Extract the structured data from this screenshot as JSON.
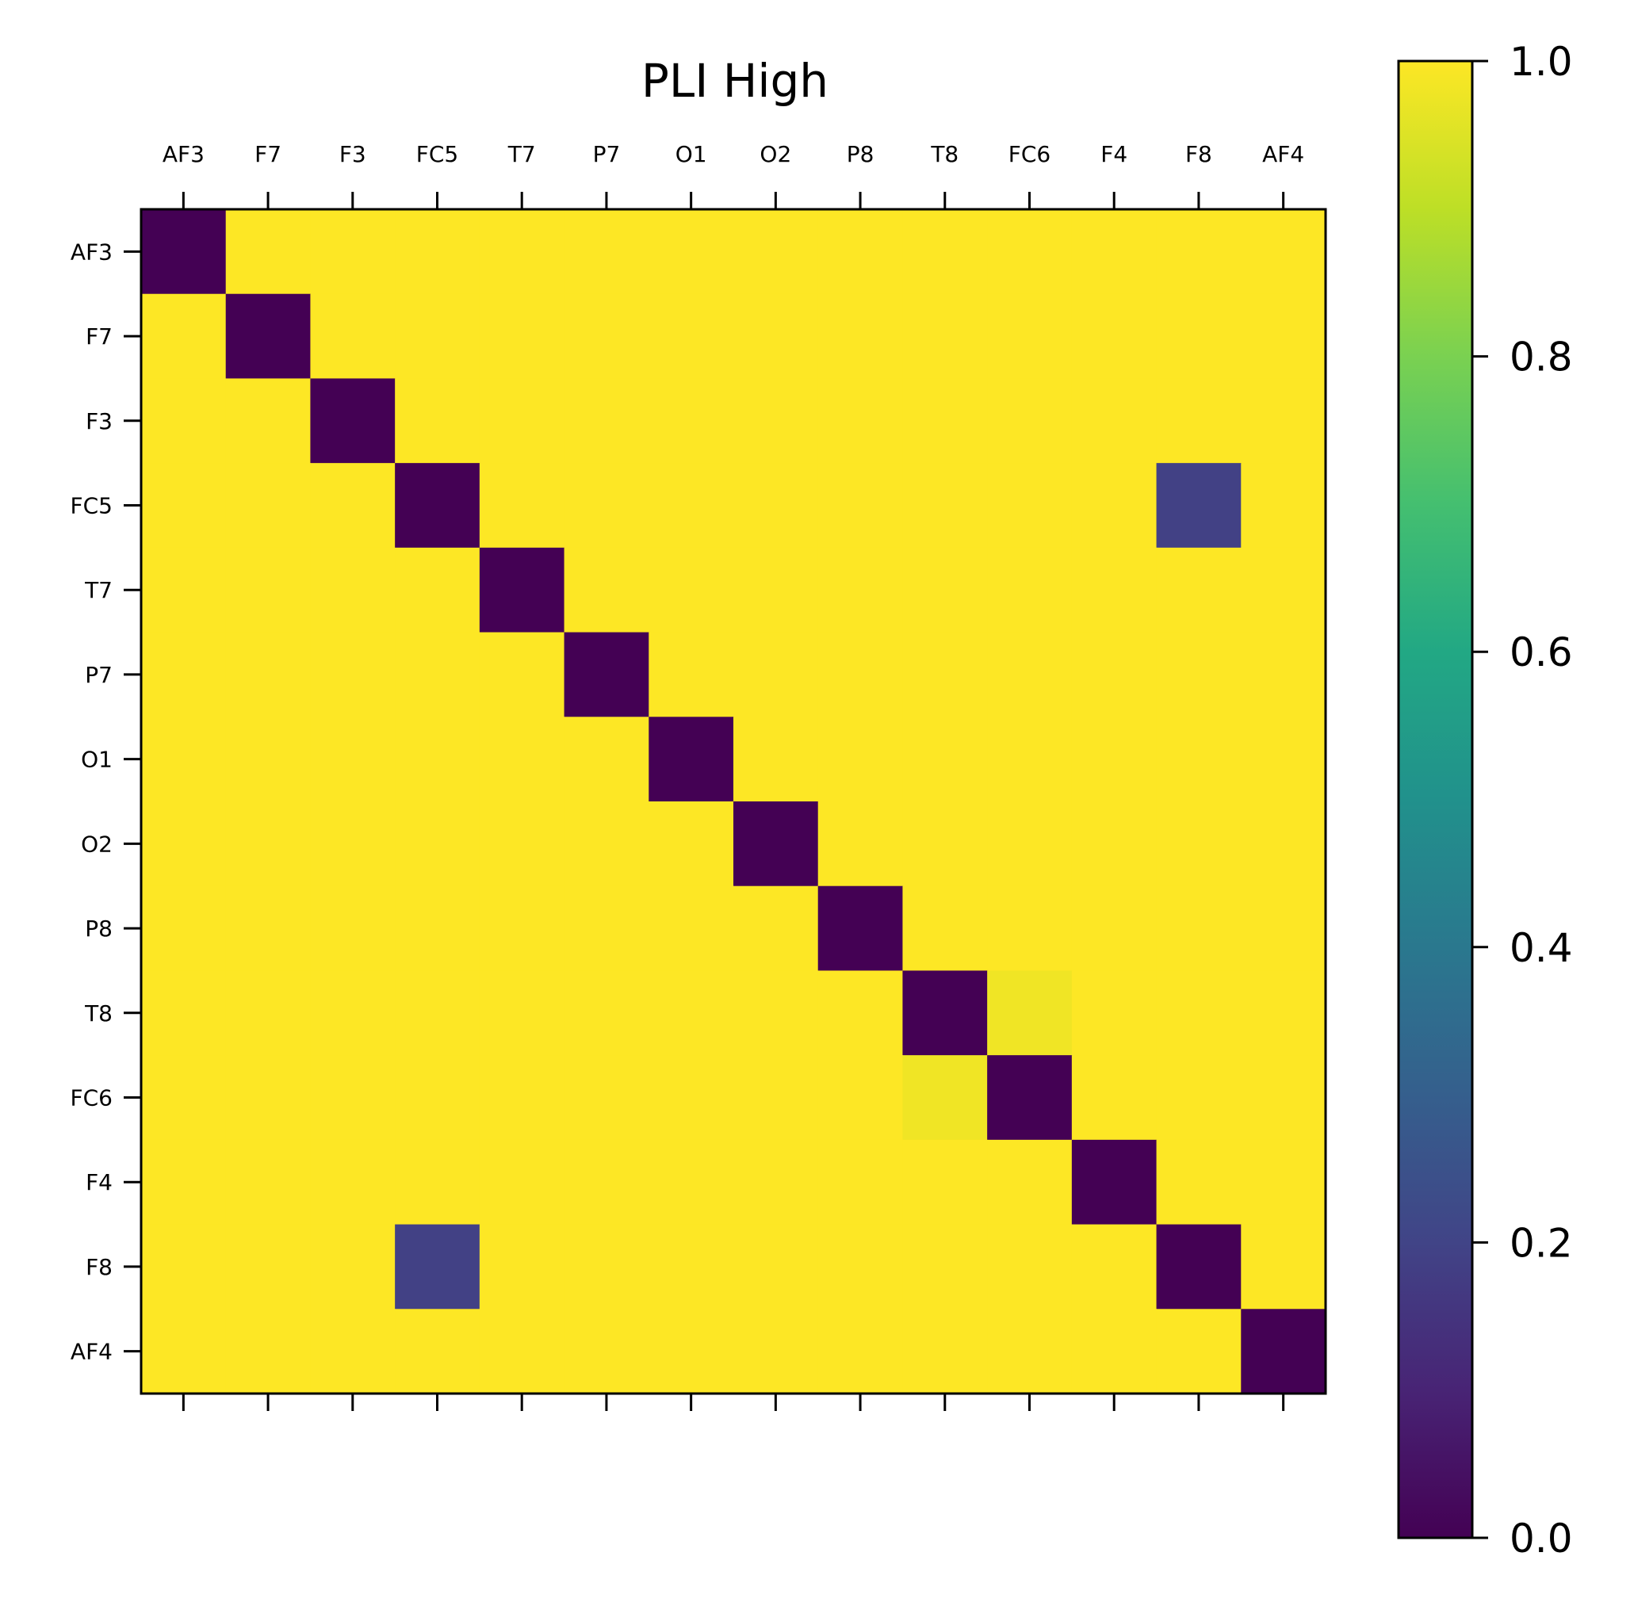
{
  "chart_data": {
    "type": "heatmap",
    "title": "PLI High",
    "x_tick_position": "top",
    "x_labels": [
      "AF3",
      "F7",
      "F3",
      "FC5",
      "T7",
      "P7",
      "O1",
      "O2",
      "P8",
      "T8",
      "FC6",
      "F4",
      "F8",
      "AF4"
    ],
    "y_labels": [
      "AF3",
      "F7",
      "F3",
      "FC5",
      "T7",
      "P7",
      "O1",
      "O2",
      "P8",
      "T8",
      "FC6",
      "F4",
      "F8",
      "AF4"
    ],
    "values": [
      [
        0,
        1,
        1,
        1,
        1,
        1,
        1,
        1,
        1,
        1,
        1,
        1,
        1,
        1
      ],
      [
        1,
        0,
        1,
        1,
        1,
        1,
        1,
        1,
        1,
        1,
        1,
        1,
        1,
        1
      ],
      [
        1,
        1,
        0,
        1,
        1,
        1,
        1,
        1,
        1,
        1,
        1,
        1,
        1,
        1
      ],
      [
        1,
        1,
        1,
        0,
        1,
        1,
        1,
        1,
        1,
        1,
        1,
        1,
        0.19,
        1
      ],
      [
        1,
        1,
        1,
        1,
        0,
        1,
        1,
        1,
        1,
        1,
        1,
        1,
        1,
        1
      ],
      [
        1,
        1,
        1,
        1,
        1,
        0,
        1,
        1,
        1,
        1,
        1,
        1,
        1,
        1
      ],
      [
        1,
        1,
        1,
        1,
        1,
        1,
        0,
        1,
        1,
        1,
        1,
        1,
        1,
        1
      ],
      [
        1,
        1,
        1,
        1,
        1,
        1,
        1,
        0,
        1,
        1,
        1,
        1,
        1,
        1
      ],
      [
        1,
        1,
        1,
        1,
        1,
        1,
        1,
        1,
        0,
        1,
        1,
        1,
        1,
        1
      ],
      [
        1,
        1,
        1,
        1,
        1,
        1,
        1,
        1,
        1,
        0,
        0.98,
        1,
        1,
        1
      ],
      [
        1,
        1,
        1,
        1,
        1,
        1,
        1,
        1,
        1,
        0.98,
        0,
        1,
        1,
        1
      ],
      [
        1,
        1,
        1,
        1,
        1,
        1,
        1,
        1,
        1,
        1,
        1,
        0,
        1,
        1
      ],
      [
        1,
        1,
        1,
        0.19,
        1,
        1,
        1,
        1,
        1,
        1,
        1,
        1,
        0,
        1
      ],
      [
        1,
        1,
        1,
        1,
        1,
        1,
        1,
        1,
        1,
        1,
        1,
        1,
        1,
        0
      ]
    ],
    "colormap": "viridis",
    "vmin": 0.0,
    "vmax": 1.0,
    "colorbar": {
      "position": "right",
      "ticks": [
        0.0,
        0.2,
        0.4,
        0.6,
        0.8,
        1.0
      ],
      "tick_labels": [
        "0.0",
        "0.2",
        "0.4",
        "0.6",
        "0.8",
        "1.0"
      ]
    },
    "grid": false
  }
}
